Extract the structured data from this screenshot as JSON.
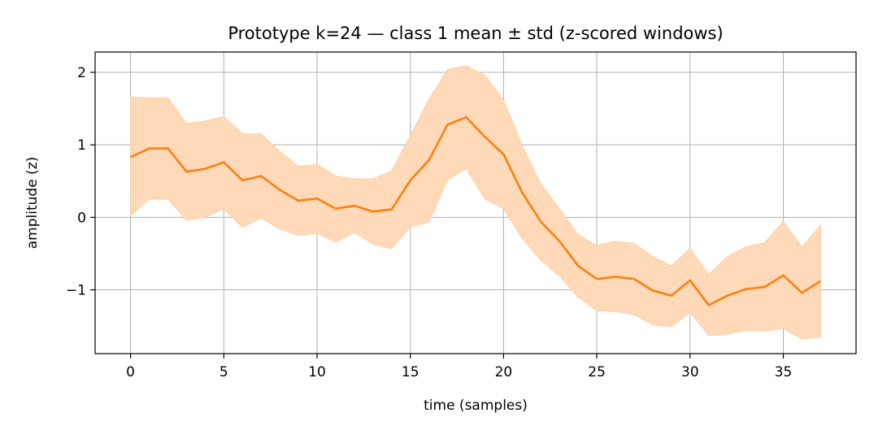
{
  "chart_data": {
    "type": "line",
    "title": "Prototype k=24 — class 1 mean ± std (z-scored windows)",
    "xlabel": "time (samples)",
    "ylabel": "amplitude (z)",
    "xlim": [
      -1.9,
      38.9
    ],
    "ylim": [
      -1.88,
      2.28
    ],
    "grid": true,
    "colors": {
      "line": "#ff7f0e",
      "band": "#ffd9b8",
      "band_edge": "#ffcfa3",
      "grid": "#b0b0b0"
    },
    "xticks": [
      {
        "value": 0,
        "label": "0"
      },
      {
        "value": 5,
        "label": "5"
      },
      {
        "value": 10,
        "label": "10"
      },
      {
        "value": 15,
        "label": "15"
      },
      {
        "value": 20,
        "label": "20"
      },
      {
        "value": 25,
        "label": "25"
      },
      {
        "value": 30,
        "label": "30"
      },
      {
        "value": 35,
        "label": "35"
      }
    ],
    "yticks": [
      {
        "value": 2,
        "label": "2"
      },
      {
        "value": 1,
        "label": "1"
      },
      {
        "value": 0,
        "label": "0"
      },
      {
        "value": -1,
        "label": "−1"
      }
    ],
    "x": [
      0,
      1,
      2,
      3,
      4,
      5,
      6,
      7,
      8,
      9,
      10,
      11,
      12,
      13,
      14,
      15,
      16,
      17,
      18,
      19,
      20,
      21,
      22,
      23,
      24,
      25,
      26,
      27,
      28,
      29,
      30,
      31,
      32,
      33,
      34,
      35,
      36,
      37
    ],
    "series": [
      {
        "values": [
          0.83,
          0.95,
          0.95,
          0.63,
          0.67,
          0.76,
          0.51,
          0.57,
          0.38,
          0.23,
          0.26,
          0.12,
          0.16,
          0.08,
          0.11,
          0.51,
          0.79,
          1.28,
          1.38,
          1.11,
          0.87,
          0.34,
          -0.06,
          -0.33,
          -0.67,
          -0.85,
          -0.82,
          -0.85,
          -1.01,
          -1.08,
          -0.87,
          -1.21,
          -1.08,
          -0.99,
          -0.96,
          -0.8,
          -1.04,
          -0.88
        ],
        "upper": [
          1.66,
          1.65,
          1.65,
          1.29,
          1.33,
          1.39,
          1.15,
          1.15,
          0.91,
          0.7,
          0.73,
          0.57,
          0.53,
          0.53,
          0.64,
          1.13,
          1.63,
          2.04,
          2.09,
          1.96,
          1.62,
          0.99,
          0.46,
          0.12,
          -0.24,
          -0.39,
          -0.33,
          -0.36,
          -0.54,
          -0.67,
          -0.43,
          -0.79,
          -0.54,
          -0.41,
          -0.35,
          -0.06,
          -0.41,
          -0.11
        ],
        "lower": [
          0.02,
          0.25,
          0.25,
          -0.04,
          0.0,
          0.12,
          -0.14,
          -0.01,
          -0.16,
          -0.25,
          -0.22,
          -0.34,
          -0.21,
          -0.37,
          -0.43,
          -0.13,
          -0.07,
          0.52,
          0.67,
          0.25,
          0.12,
          -0.29,
          -0.59,
          -0.81,
          -1.1,
          -1.29,
          -1.3,
          -1.34,
          -1.48,
          -1.51,
          -1.31,
          -1.63,
          -1.61,
          -1.56,
          -1.57,
          -1.53,
          -1.68,
          -1.65
        ]
      }
    ]
  }
}
